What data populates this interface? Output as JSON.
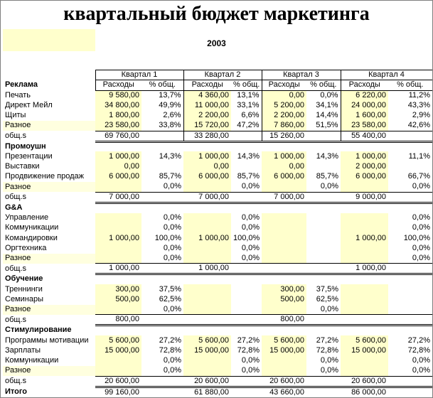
{
  "title": "квартальный бюджет маркетинга",
  "year": "2003",
  "colors": {
    "cell_highlight": "#FFFFCC",
    "label_highlight": "#FFFFDF",
    "border": "#000000",
    "frame": "#808080"
  },
  "table": {
    "quarters": [
      "Квартал 1",
      "Квартал 2",
      "Квартал 3",
      "Квартал 4"
    ],
    "expenses_header": "Расходы",
    "pct_header": "% общ.",
    "subtotal_label": "общ.s",
    "grand_total_label": "Итого",
    "sections": [
      {
        "name": "Реклама",
        "rows": [
          {
            "label": "Печать",
            "cells": [
              "9 580,00",
              "13,7%",
              "4 360,00",
              "13,1%",
              "0,00",
              "0,0%",
              "6 220,00",
              "11,2%"
            ]
          },
          {
            "label": "Директ Мейл",
            "cells": [
              "34 800,00",
              "49,9%",
              "11 000,00",
              "33,1%",
              "5 200,00",
              "34,1%",
              "24 000,00",
              "43,3%"
            ]
          },
          {
            "label": "Щиты",
            "cells": [
              "1 800,00",
              "2,6%",
              "2 200,00",
              "6,6%",
              "2 200,00",
              "14,4%",
              "1 600,00",
              "2,9%"
            ]
          },
          {
            "label": "Разное",
            "cells": [
              "23 580,00",
              "33,8%",
              "15 720,00",
              "47,2%",
              "7 860,00",
              "51,5%",
              "23 580,00",
              "42,6%"
            ]
          }
        ],
        "subtotal": [
          "69 760,00",
          "33 280,00",
          "15 260,00",
          "55 400,00"
        ]
      },
      {
        "name": "Промоушн",
        "rows": [
          {
            "label": "Презентации",
            "cells": [
              "1 000,00",
              "14,3%",
              "1 000,00",
              "14,3%",
              "1 000,00",
              "14,3%",
              "1 000,00",
              "11,1%"
            ]
          },
          {
            "label": "Выставки",
            "cells": [
              "0,00",
              "",
              "0,00",
              "",
              "0,00",
              "",
              "2 000,00",
              ""
            ]
          },
          {
            "label": "Продвижение продаж",
            "cells": [
              "6 000,00",
              "85,7%",
              "6 000,00",
              "85,7%",
              "6 000,00",
              "85,7%",
              "6 000,00",
              "66,7%"
            ]
          },
          {
            "label": "Разное",
            "cells": [
              "",
              "0,0%",
              "",
              "0,0%",
              "",
              "0,0%",
              "",
              "0,0%"
            ]
          }
        ],
        "subtotal": [
          "7 000,00",
          "7 000,00",
          "7 000,00",
          "9 000,00"
        ]
      },
      {
        "name": "G&A",
        "rows": [
          {
            "label": "Управление",
            "cells": [
              "",
              "0,0%",
              "",
              "0,0%",
              "",
              "",
              "",
              "0,0%"
            ]
          },
          {
            "label": "Коммуникации",
            "cells": [
              "",
              "0,0%",
              "",
              "0,0%",
              "",
              "",
              "",
              "0,0%"
            ]
          },
          {
            "label": "Командировки",
            "cells": [
              "1 000,00",
              "100,0%",
              "1 000,00",
              "100,0%",
              "",
              "",
              "1 000,00",
              "100,0%"
            ]
          },
          {
            "label": "Оргтехника",
            "cells": [
              "",
              "0,0%",
              "",
              "0,0%",
              "",
              "",
              "",
              "0,0%"
            ]
          },
          {
            "label": "Разное",
            "cells": [
              "",
              "0,0%",
              "",
              "0,0%",
              "",
              "",
              "",
              "0,0%"
            ]
          }
        ],
        "subtotal": [
          "1 000,00",
          "1 000,00",
          "",
          "1 000,00"
        ]
      },
      {
        "name": "Обучение",
        "rows": [
          {
            "label": "Треннинги",
            "cells": [
              "300,00",
              "37,5%",
              "",
              "",
              "300,00",
              "37,5%",
              "",
              ""
            ]
          },
          {
            "label": "Семинары",
            "cells": [
              "500,00",
              "62,5%",
              "",
              "",
              "500,00",
              "62,5%",
              "",
              ""
            ]
          },
          {
            "label": "Разное",
            "cells": [
              "",
              "0,0%",
              "",
              "",
              "",
              "0,0%",
              "",
              ""
            ]
          }
        ],
        "subtotal": [
          "800,00",
          "",
          "800,00",
          ""
        ]
      },
      {
        "name": "Стимулирование",
        "rows": [
          {
            "label": "Программы мотивации",
            "cells": [
              "5 600,00",
              "27,2%",
              "5 600,00",
              "27,2%",
              "5 600,00",
              "27,2%",
              "5 600,00",
              "27,2%"
            ]
          },
          {
            "label": "Зарплаты",
            "cells": [
              "15 000,00",
              "72,8%",
              "15 000,00",
              "72,8%",
              "15 000,00",
              "72,8%",
              "15 000,00",
              "72,8%"
            ]
          },
          {
            "label": "Коммуникации",
            "cells": [
              "",
              "0,0%",
              "",
              "0,0%",
              "",
              "0,0%",
              "",
              "0,0%"
            ]
          },
          {
            "label": "Разное",
            "cells": [
              "",
              "0,0%",
              "",
              "0,0%",
              "",
              "0,0%",
              "",
              "0,0%"
            ]
          }
        ],
        "subtotal": [
          "20 600,00",
          "20 600,00",
          "20 600,00",
          "20 600,00"
        ]
      }
    ],
    "grand_total": [
      "99 160,00",
      "61 880,00",
      "43 660,00",
      "86 000,00"
    ]
  }
}
